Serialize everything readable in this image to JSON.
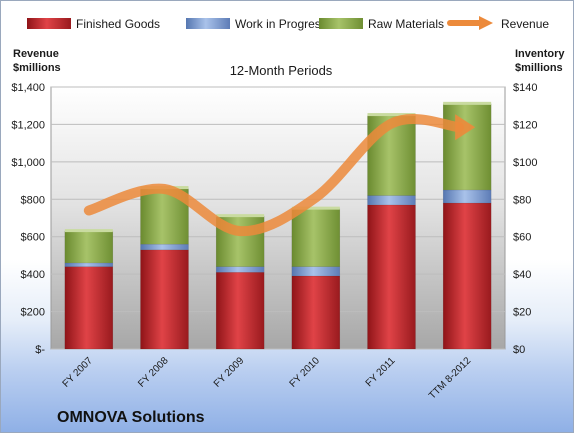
{
  "chart_data": {
    "type": "bar",
    "subtitle": "12-Month Periods",
    "company": "OMNOVA Solutions",
    "categories": [
      "FY 2007",
      "FY 2008",
      "FY 2009",
      "FY 2010",
      "FY 2011",
      "TTM 8-2012"
    ],
    "left_axis": {
      "title_line1": "Revenue",
      "title_line2": "$millions",
      "ylim": [
        0,
        1400
      ],
      "ticks": [
        0,
        200,
        400,
        600,
        800,
        1000,
        1200,
        1400
      ],
      "tick_labels": [
        "$-",
        "$200",
        "$400",
        "$600",
        "$800",
        "$1,000",
        "$1,200",
        "$1,400"
      ]
    },
    "right_axis": {
      "title_line1": "Inventory",
      "title_line2": "$millions",
      "ylim": [
        0,
        140
      ],
      "ticks": [
        0,
        20,
        40,
        60,
        80,
        100,
        120,
        140
      ],
      "tick_labels": [
        "$0",
        "$20",
        "$40",
        "$60",
        "$80",
        "$100",
        "$120",
        "$140"
      ]
    },
    "series": [
      {
        "name": "Finished Goods",
        "kind": "stacked-bar",
        "axis": "right",
        "color": "#c0282d",
        "values": [
          44,
          53,
          41,
          39,
          77,
          78
        ]
      },
      {
        "name": "Work in Progress",
        "kind": "stacked-bar",
        "axis": "right",
        "color": "#7d9bcf",
        "values": [
          2,
          3,
          3,
          5,
          5,
          7
        ]
      },
      {
        "name": "Raw Materials",
        "kind": "stacked-bar",
        "axis": "right",
        "color": "#8fab4e",
        "values": [
          17,
          30,
          27,
          31,
          43,
          46
        ]
      },
      {
        "name": "Revenue",
        "kind": "line",
        "axis": "left",
        "color": "#ec8a3b",
        "values": [
          740,
          855,
          630,
          810,
          1205,
          1185
        ]
      }
    ],
    "legend_position": "top",
    "grid": true
  }
}
